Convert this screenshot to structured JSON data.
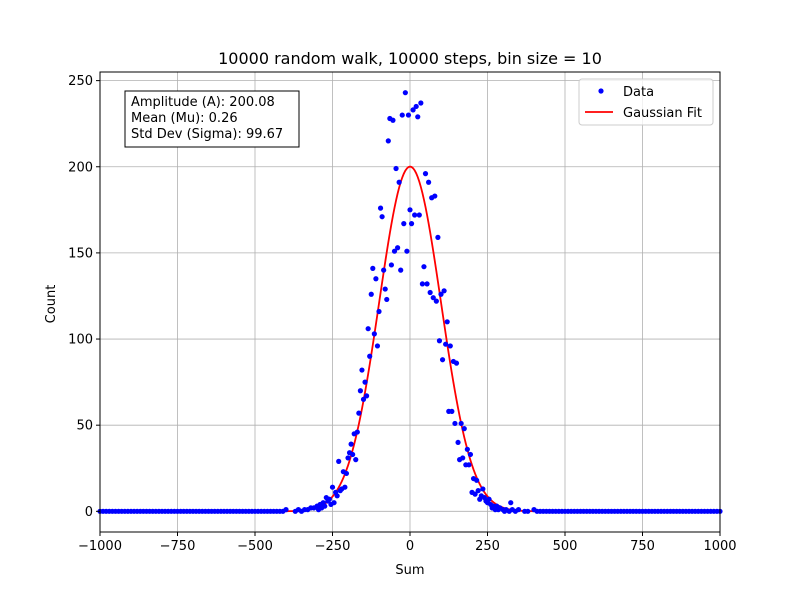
{
  "chart_data": {
    "type": "scatter",
    "title": "10000 random walk, 10000 steps, bin size = 10",
    "xlabel": "Sum",
    "ylabel": "Count",
    "xlim": [
      -1000,
      1000
    ],
    "ylim": [
      -12,
      255
    ],
    "xticks": [
      -1000,
      -750,
      -500,
      -250,
      0,
      250,
      500,
      750,
      1000
    ],
    "xtick_labels": [
      "−1000",
      "−750",
      "−500",
      "−250",
      "0",
      "250",
      "500",
      "750",
      "1000"
    ],
    "yticks": [
      0,
      50,
      100,
      150,
      200,
      250
    ],
    "ytick_labels": [
      "0",
      "50",
      "100",
      "150",
      "200",
      "250"
    ],
    "grid": true,
    "legend_position": "top-right",
    "annotation": {
      "lines": [
        "Amplitude (A): 200.08",
        "Mean (Mu): 0.26",
        "Std Dev (Sigma): 99.67"
      ]
    },
    "series": [
      {
        "name": "Data",
        "kind": "scatter",
        "color": "#0000ff",
        "points": [
          [
            -400,
            1
          ],
          [
            -370,
            0
          ],
          [
            -360,
            1
          ],
          [
            -350,
            0
          ],
          [
            -340,
            1
          ],
          [
            -330,
            1
          ],
          [
            -320,
            2
          ],
          [
            -310,
            2
          ],
          [
            -300,
            3
          ],
          [
            -295,
            1
          ],
          [
            -290,
            4
          ],
          [
            -285,
            2
          ],
          [
            -280,
            5
          ],
          [
            -275,
            3
          ],
          [
            -270,
            8
          ],
          [
            -265,
            6
          ],
          [
            -260,
            7
          ],
          [
            -255,
            4
          ],
          [
            -250,
            14
          ],
          [
            -245,
            5
          ],
          [
            -240,
            11
          ],
          [
            -235,
            9
          ],
          [
            -230,
            29
          ],
          [
            -225,
            12
          ],
          [
            -220,
            13
          ],
          [
            -215,
            23
          ],
          [
            -210,
            14
          ],
          [
            -205,
            22
          ],
          [
            -200,
            31
          ],
          [
            -195,
            34
          ],
          [
            -190,
            39
          ],
          [
            -185,
            33
          ],
          [
            -180,
            45
          ],
          [
            -175,
            30
          ],
          [
            -170,
            46
          ],
          [
            -165,
            57
          ],
          [
            -160,
            70
          ],
          [
            -155,
            82
          ],
          [
            -150,
            65
          ],
          [
            -145,
            75
          ],
          [
            -140,
            67
          ],
          [
            -135,
            106
          ],
          [
            -130,
            90
          ],
          [
            -125,
            126
          ],
          [
            -120,
            141
          ],
          [
            -115,
            103
          ],
          [
            -110,
            135
          ],
          [
            -105,
            96
          ],
          [
            -100,
            116
          ],
          [
            -95,
            176
          ],
          [
            -90,
            171
          ],
          [
            -85,
            140
          ],
          [
            -80,
            129
          ],
          [
            -75,
            123
          ],
          [
            -70,
            215
          ],
          [
            -65,
            228
          ],
          [
            -60,
            143
          ],
          [
            -55,
            227
          ],
          [
            -50,
            151
          ],
          [
            -45,
            199
          ],
          [
            -40,
            153
          ],
          [
            -35,
            191
          ],
          [
            -30,
            140
          ],
          [
            -25,
            230
          ],
          [
            -20,
            167
          ],
          [
            -15,
            243
          ],
          [
            -10,
            151
          ],
          [
            -5,
            230
          ],
          [
            0,
            175
          ],
          [
            5,
            167
          ],
          [
            10,
            233
          ],
          [
            15,
            172
          ],
          [
            20,
            235
          ],
          [
            25,
            229
          ],
          [
            30,
            172
          ],
          [
            35,
            237
          ],
          [
            40,
            132
          ],
          [
            45,
            142
          ],
          [
            50,
            196
          ],
          [
            55,
            132
          ],
          [
            60,
            191
          ],
          [
            65,
            127
          ],
          [
            70,
            182
          ],
          [
            75,
            124
          ],
          [
            80,
            183
          ],
          [
            85,
            122
          ],
          [
            90,
            159
          ],
          [
            95,
            99
          ],
          [
            100,
            126
          ],
          [
            105,
            88
          ],
          [
            110,
            128
          ],
          [
            115,
            97
          ],
          [
            120,
            110
          ],
          [
            125,
            58
          ],
          [
            130,
            96
          ],
          [
            135,
            58
          ],
          [
            140,
            87
          ],
          [
            145,
            51
          ],
          [
            150,
            86
          ],
          [
            155,
            40
          ],
          [
            160,
            30
          ],
          [
            165,
            51
          ],
          [
            170,
            31
          ],
          [
            175,
            48
          ],
          [
            180,
            27
          ],
          [
            185,
            36
          ],
          [
            190,
            27
          ],
          [
            195,
            33
          ],
          [
            200,
            11
          ],
          [
            205,
            19
          ],
          [
            210,
            10
          ],
          [
            215,
            18
          ],
          [
            220,
            12
          ],
          [
            225,
            7
          ],
          [
            230,
            9
          ],
          [
            235,
            13
          ],
          [
            240,
            8
          ],
          [
            245,
            6
          ],
          [
            250,
            5
          ],
          [
            255,
            7
          ],
          [
            260,
            4
          ],
          [
            265,
            2
          ],
          [
            270,
            3
          ],
          [
            275,
            1
          ],
          [
            280,
            3
          ],
          [
            285,
            1
          ],
          [
            290,
            2
          ],
          [
            300,
            1
          ],
          [
            305,
            0
          ],
          [
            310,
            1
          ],
          [
            320,
            0
          ],
          [
            325,
            5
          ],
          [
            330,
            1
          ],
          [
            340,
            0
          ],
          [
            350,
            1
          ],
          [
            370,
            0
          ],
          [
            380,
            0
          ],
          [
            400,
            1
          ],
          [
            410,
            0
          ],
          [
            420,
            0
          ]
        ]
      },
      {
        "name": "Gaussian Fit",
        "kind": "line",
        "color": "#ff0000",
        "amplitude": 200.08,
        "mean": 0.26,
        "sigma": 99.67,
        "x_range": [
          -1000,
          1000
        ]
      }
    ]
  }
}
